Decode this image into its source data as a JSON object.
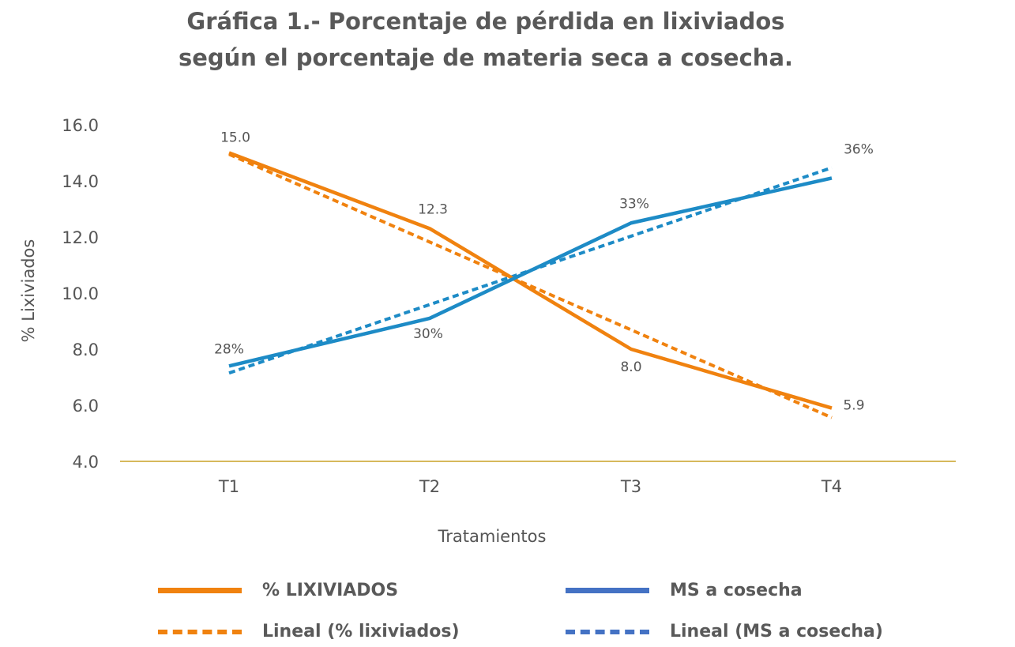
{
  "chart_data": {
    "type": "line",
    "title_line1": "Gráfica 1.- Porcentaje de pérdida en lixiviados",
    "title_line2": "según el porcentaje de materia seca a cosecha.",
    "xlabel": "Tratamientos",
    "ylabel": "% Lixiviados",
    "categories": [
      "T1",
      "T2",
      "T3",
      "T4"
    ],
    "ylim": [
      4.0,
      16.0
    ],
    "yticks": [
      "16.0",
      "14.0",
      "12.0",
      "10.0",
      "8.0",
      "6.0",
      "4.0"
    ],
    "yticks_values": [
      16,
      14,
      12,
      10,
      8,
      6,
      4
    ],
    "series": [
      {
        "name": "% LIXIVIADOS",
        "color": "#F0820F",
        "style": "solid",
        "values": [
          15.0,
          12.3,
          8.0,
          5.9
        ],
        "labels": [
          "15.0",
          "12.3",
          "8.0",
          "5.9"
        ]
      },
      {
        "name": "MS a cosecha",
        "color": "#1D8BC6",
        "legend_color": "#4472C4",
        "style": "solid",
        "values": [
          7.4,
          9.1,
          12.5,
          14.1
        ],
        "labels": [
          "28%",
          "30%",
          "33%",
          "36%"
        ]
      },
      {
        "name": "Lineal (% lixiviados)",
        "color": "#F0820F",
        "style": "dashed",
        "values": [
          14.95,
          11.82,
          8.69,
          5.56
        ]
      },
      {
        "name": "Lineal (MS a cosecha)",
        "color": "#1D8BC6",
        "legend_color": "#4472C4",
        "style": "dashed",
        "values": [
          7.15,
          9.59,
          12.03,
          14.47
        ]
      }
    ],
    "grid": false,
    "legend_position": "bottom"
  }
}
